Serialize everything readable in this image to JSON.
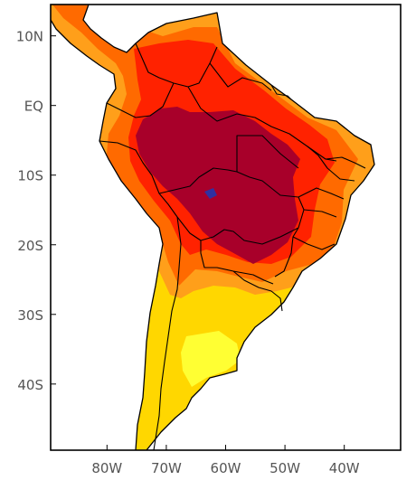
{
  "map": {
    "y_labels": [
      "10N",
      "EQ",
      "10S",
      "20S",
      "30S",
      "40S"
    ],
    "x_labels": [
      "80W",
      "70W",
      "60W",
      "50W",
      "40W"
    ],
    "lat_range": [
      -49.5,
      14.5
    ],
    "lon_range": [
      -89.5,
      -30.5
    ],
    "palette": {
      "light_yellow": "#ffff33",
      "yellow": "#ffd700",
      "orange": "#ff9f1a",
      "dark_orange": "#ff6a00",
      "red": "#ff2200",
      "dark_red": "#a8002a",
      "blue_spot": "#3030a0"
    }
  }
}
